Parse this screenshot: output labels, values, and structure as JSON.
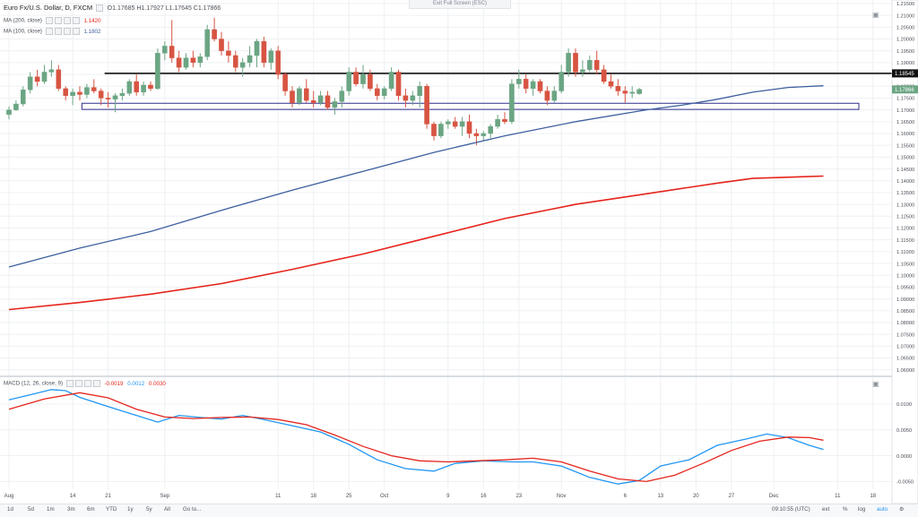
{
  "window": {
    "exit_fullscreen_label": "Exit Full Screen (ESC)"
  },
  "legend": {
    "symbol": "Euro Fx/U.S. Dollar, D, FXCM",
    "ohlc": "O1.17685  H1.17927  L1.17645  C1.17866",
    "ma200_label": "MA (200, close)",
    "ma200_value": "1.1420",
    "ma100_label": "MA (100, close)",
    "ma100_value": "1.1802",
    "macd_label": "MACD (12, 26, close, 9)",
    "macd_hist_value": "-0.0019",
    "macd_line_value": "0.0012",
    "macd_signal_value": "0.0030"
  },
  "colors": {
    "up": "#6ba583",
    "down": "#d75442",
    "ma200": "#e5241b",
    "ma100": "#3c5f9e",
    "macd": "#2196f3",
    "signal": "#e5241b",
    "support_box": "#2e2e8c",
    "resistance_line": "#000000"
  },
  "bottom_bar": {
    "ranges": [
      "1d",
      "5d",
      "1m",
      "3m",
      "6m",
      "YTD",
      "1y",
      "5y",
      "All",
      "Go to..."
    ],
    "time": "09:10:55 (UTC)",
    "options": [
      "ext",
      "%",
      "log",
      "auto"
    ]
  },
  "chart_data": [
    {
      "type": "candlestick",
      "title": "Euro Fx/U.S. Dollar, D, FXCM",
      "ylim": [
        1.058,
        1.2165
      ],
      "y_ticks": [
        1.06,
        1.065,
        1.07,
        1.075,
        1.08,
        1.085,
        1.09,
        1.095,
        1.1,
        1.105,
        1.11,
        1.115,
        1.12,
        1.125,
        1.13,
        1.135,
        1.14,
        1.145,
        1.15,
        1.155,
        1.16,
        1.165,
        1.17,
        1.175,
        1.18,
        1.185,
        1.19,
        1.195,
        1.2,
        1.205,
        1.21,
        1.215
      ],
      "x_tick_labels": [
        "Aug",
        "14",
        "21",
        "Sep",
        "11",
        "18",
        "25",
        "Oct",
        "9",
        "16",
        "23",
        "Nov",
        "6",
        "13",
        "20",
        "27",
        "Dec",
        "11",
        "18"
      ],
      "x_tick_days": [
        0,
        9,
        14,
        22,
        38,
        43,
        48,
        53,
        62,
        67,
        72,
        78,
        87,
        92,
        97,
        102,
        108,
        117,
        122
      ],
      "price_labels": [
        {
          "text": "1.18545",
          "value": 1.18545,
          "style": "dark"
        },
        {
          "text": "1.17866",
          "value": 1.17866,
          "style": "green"
        }
      ],
      "candles": [
        [
          1.168,
          1.1715,
          1.166,
          1.17
        ],
        [
          1.17,
          1.174,
          1.1695,
          1.1725
        ],
        [
          1.1725,
          1.18,
          1.1715,
          1.1785
        ],
        [
          1.1785,
          1.186,
          1.177,
          1.184
        ],
        [
          1.184,
          1.187,
          1.18,
          1.182
        ],
        [
          1.182,
          1.189,
          1.181,
          1.186
        ],
        [
          1.186,
          1.191,
          1.184,
          1.187
        ],
        [
          1.187,
          1.189,
          1.178,
          1.179
        ],
        [
          1.179,
          1.18,
          1.174,
          1.176
        ],
        [
          1.176,
          1.179,
          1.172,
          1.1775
        ],
        [
          1.1775,
          1.18,
          1.174,
          1.1765
        ],
        [
          1.1765,
          1.181,
          1.175,
          1.1795
        ],
        [
          1.1795,
          1.183,
          1.177,
          1.178
        ],
        [
          1.178,
          1.179,
          1.172,
          1.175
        ],
        [
          1.175,
          1.1775,
          1.171,
          1.1745
        ],
        [
          1.1745,
          1.177,
          1.169,
          1.176
        ],
        [
          1.176,
          1.179,
          1.174,
          1.177
        ],
        [
          1.177,
          1.183,
          1.176,
          1.182
        ],
        [
          1.182,
          1.185,
          1.176,
          1.1775
        ],
        [
          1.1775,
          1.182,
          1.176,
          1.1805
        ],
        [
          1.1805,
          1.182,
          1.178,
          1.179
        ],
        [
          1.179,
          1.196,
          1.1785,
          1.194
        ],
        [
          1.194,
          1.199,
          1.191,
          1.197
        ],
        [
          1.197,
          1.208,
          1.19,
          1.192
        ],
        [
          1.192,
          1.195,
          1.186,
          1.188
        ],
        [
          1.188,
          1.194,
          1.187,
          1.192
        ],
        [
          1.192,
          1.195,
          1.188,
          1.19
        ],
        [
          1.19,
          1.194,
          1.188,
          1.1925
        ],
        [
          1.1925,
          1.206,
          1.191,
          1.204
        ],
        [
          1.204,
          1.209,
          1.199,
          1.2
        ],
        [
          1.2,
          1.203,
          1.193,
          1.195
        ],
        [
          1.195,
          1.199,
          1.19,
          1.193
        ],
        [
          1.193,
          1.195,
          1.186,
          1.188
        ],
        [
          1.188,
          1.192,
          1.184,
          1.19
        ],
        [
          1.19,
          1.197,
          1.188,
          1.193
        ],
        [
          1.193,
          1.2,
          1.188,
          1.199
        ],
        [
          1.199,
          1.201,
          1.188,
          1.19
        ],
        [
          1.19,
          1.196,
          1.187,
          1.195
        ],
        [
          1.195,
          1.197,
          1.183,
          1.185
        ],
        [
          1.185,
          1.186,
          1.176,
          1.178
        ],
        [
          1.178,
          1.18,
          1.171,
          1.173
        ],
        [
          1.173,
          1.18,
          1.172,
          1.179
        ],
        [
          1.179,
          1.183,
          1.173,
          1.174
        ],
        [
          1.174,
          1.178,
          1.171,
          1.173
        ],
        [
          1.173,
          1.178,
          1.172,
          1.176
        ],
        [
          1.176,
          1.178,
          1.17,
          1.171
        ],
        [
          1.171,
          1.175,
          1.168,
          1.1735
        ],
        [
          1.1735,
          1.18,
          1.171,
          1.178
        ],
        [
          1.178,
          1.188,
          1.176,
          1.186
        ],
        [
          1.186,
          1.188,
          1.18,
          1.181
        ],
        [
          1.181,
          1.189,
          1.179,
          1.185
        ],
        [
          1.185,
          1.187,
          1.178,
          1.179
        ],
        [
          1.179,
          1.181,
          1.174,
          1.176
        ],
        [
          1.176,
          1.18,
          1.1745,
          1.179
        ],
        [
          1.179,
          1.188,
          1.178,
          1.186
        ],
        [
          1.186,
          1.187,
          1.174,
          1.176
        ],
        [
          1.176,
          1.179,
          1.171,
          1.174
        ],
        [
          1.174,
          1.178,
          1.172,
          1.176
        ],
        [
          1.176,
          1.182,
          1.171,
          1.18
        ],
        [
          1.18,
          1.181,
          1.162,
          1.164
        ],
        [
          1.164,
          1.165,
          1.157,
          1.159
        ],
        [
          1.159,
          1.165,
          1.158,
          1.164
        ],
        [
          1.164,
          1.166,
          1.162,
          1.165
        ],
        [
          1.165,
          1.167,
          1.162,
          1.163
        ],
        [
          1.163,
          1.167,
          1.159,
          1.165
        ],
        [
          1.165,
          1.168,
          1.158,
          1.16
        ],
        [
          1.16,
          1.162,
          1.155,
          1.159
        ],
        [
          1.159,
          1.161,
          1.157,
          1.16
        ],
        [
          1.16,
          1.164,
          1.158,
          1.163
        ],
        [
          1.163,
          1.168,
          1.162,
          1.166
        ],
        [
          1.166,
          1.169,
          1.164,
          1.165
        ],
        [
          1.165,
          1.183,
          1.164,
          1.181
        ],
        [
          1.181,
          1.187,
          1.179,
          1.183
        ],
        [
          1.183,
          1.185,
          1.177,
          1.179
        ],
        [
          1.179,
          1.183,
          1.176,
          1.182
        ],
        [
          1.182,
          1.183,
          1.177,
          1.178
        ],
        [
          1.178,
          1.18,
          1.172,
          1.174
        ],
        [
          1.174,
          1.18,
          1.173,
          1.178
        ],
        [
          1.178,
          1.189,
          1.177,
          1.186
        ],
        [
          1.186,
          1.196,
          1.184,
          1.194
        ],
        [
          1.194,
          1.196,
          1.184,
          1.186
        ],
        [
          1.186,
          1.191,
          1.184,
          1.187
        ],
        [
          1.187,
          1.193,
          1.186,
          1.191
        ],
        [
          1.191,
          1.195,
          1.185,
          1.187
        ],
        [
          1.187,
          1.189,
          1.181,
          1.182
        ],
        [
          1.182,
          1.185,
          1.179,
          1.18
        ],
        [
          1.18,
          1.183,
          1.176,
          1.178
        ],
        [
          1.178,
          1.18,
          1.173,
          1.177
        ],
        [
          1.177,
          1.18,
          1.175,
          1.1775
        ],
        [
          1.17685,
          1.17927,
          1.17645,
          1.17866
        ]
      ],
      "candle_fields": [
        "open",
        "high",
        "low",
        "close"
      ],
      "ma100": [
        [
          0,
          1.1035
        ],
        [
          10,
          1.1115
        ],
        [
          20,
          1.1185
        ],
        [
          30,
          1.1275
        ],
        [
          40,
          1.136
        ],
        [
          50,
          1.144
        ],
        [
          60,
          1.152
        ],
        [
          70,
          1.159
        ],
        [
          80,
          1.165
        ],
        [
          90,
          1.17
        ],
        [
          95,
          1.172
        ],
        [
          100,
          1.1745
        ],
        [
          105,
          1.1775
        ],
        [
          110,
          1.1795
        ],
        [
          115,
          1.1802
        ]
      ],
      "ma200": [
        [
          0,
          1.0855
        ],
        [
          10,
          1.0885
        ],
        [
          20,
          1.092
        ],
        [
          30,
          1.0965
        ],
        [
          40,
          1.1025
        ],
        [
          50,
          1.109
        ],
        [
          60,
          1.1165
        ],
        [
          70,
          1.124
        ],
        [
          80,
          1.13
        ],
        [
          90,
          1.1345
        ],
        [
          100,
          1.139
        ],
        [
          105,
          1.141
        ],
        [
          115,
          1.142
        ]
      ],
      "support_zone": {
        "low": 1.1702,
        "high": 1.1728
      },
      "resistance_level": 1.18545
    },
    {
      "type": "line",
      "title": "MACD (12, 26, close, 9)",
      "ylim": [
        -0.0065,
        0.0152
      ],
      "y_ticks": [
        -0.005,
        0.0,
        0.005,
        0.01
      ],
      "y_tick_labels": [
        "-0.0050",
        "0.0000",
        "0.0050",
        "0.0100"
      ],
      "series": [
        {
          "name": "MACD",
          "points": [
            [
              0,
              0.0108
            ],
            [
              3,
              0.0118
            ],
            [
              6,
              0.0128
            ],
            [
              8,
              0.0126
            ],
            [
              10,
              0.0113
            ],
            [
              14,
              0.0095
            ],
            [
              18,
              0.0078
            ],
            [
              21,
              0.0065
            ],
            [
              24,
              0.0078
            ],
            [
              27,
              0.0074
            ],
            [
              30,
              0.0071
            ],
            [
              33,
              0.0078
            ],
            [
              36,
              0.007
            ],
            [
              40,
              0.0058
            ],
            [
              44,
              0.0046
            ],
            [
              48,
              0.0022
            ],
            [
              52,
              -0.0008
            ],
            [
              56,
              -0.0025
            ],
            [
              60,
              -0.003
            ],
            [
              63,
              -0.0015
            ],
            [
              67,
              -0.001
            ],
            [
              71,
              -0.0012
            ],
            [
              74,
              -0.0012
            ],
            [
              78,
              -0.002
            ],
            [
              82,
              -0.0042
            ],
            [
              86,
              -0.0055
            ],
            [
              89,
              -0.0048
            ],
            [
              92,
              -0.002
            ],
            [
              96,
              -0.0008
            ],
            [
              100,
              0.002
            ],
            [
              104,
              0.0032
            ],
            [
              107,
              0.0042
            ],
            [
              110,
              0.0035
            ],
            [
              113,
              0.002
            ],
            [
              115,
              0.0012
            ]
          ]
        },
        {
          "name": "Signal",
          "points": [
            [
              0,
              0.009
            ],
            [
              5,
              0.011
            ],
            [
              10,
              0.0122
            ],
            [
              14,
              0.0112
            ],
            [
              18,
              0.009
            ],
            [
              22,
              0.0075
            ],
            [
              26,
              0.0072
            ],
            [
              30,
              0.0074
            ],
            [
              34,
              0.0075
            ],
            [
              38,
              0.007
            ],
            [
              42,
              0.006
            ],
            [
              46,
              0.004
            ],
            [
              50,
              0.0018
            ],
            [
              54,
              0.0
            ],
            [
              58,
              -0.001
            ],
            [
              62,
              -0.0012
            ],
            [
              66,
              -0.001
            ],
            [
              70,
              -0.0008
            ],
            [
              74,
              -0.0005
            ],
            [
              78,
              -0.0012
            ],
            [
              82,
              -0.003
            ],
            [
              86,
              -0.0045
            ],
            [
              90,
              -0.005
            ],
            [
              94,
              -0.0038
            ],
            [
              98,
              -0.0015
            ],
            [
              102,
              0.001
            ],
            [
              106,
              0.0028
            ],
            [
              110,
              0.0036
            ],
            [
              113,
              0.0035
            ],
            [
              115,
              0.003
            ]
          ]
        }
      ]
    }
  ]
}
